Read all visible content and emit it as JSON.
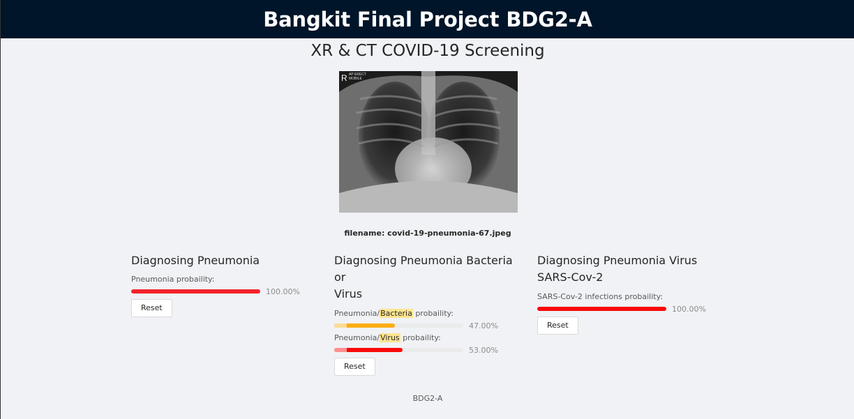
{
  "header": {
    "title": "Bangkit Final Project BDG2-A"
  },
  "page": {
    "subtitle": "XR & CT COVID-19 Screening",
    "xray_label_r": "R",
    "xray_label_text": "AP ERECT",
    "xray_label_text2": "MOBILE",
    "filename": "filename: covid-19-pneumonia-67.jpeg"
  },
  "cards": {
    "pneumonia": {
      "title": "Diagnosing Pneumonia",
      "label": "Pneumonia probaility:",
      "value": 100,
      "percent_text": "100.00%",
      "reset": "Reset"
    },
    "bacteria_virus": {
      "title_line1": "Diagnosing Pneumonia Bacteria or",
      "title_line2": "Virus",
      "bacteria_label_prefix": "Pneumonia/",
      "bacteria_label_mark": "Bacteria",
      "bacteria_label_suffix": " probaility:",
      "bacteria_value": 47,
      "bacteria_percent_text": "47.00%",
      "virus_label_prefix": "Pneumonia/",
      "virus_label_mark": "Virus",
      "virus_label_suffix": " probaility:",
      "virus_value": 53,
      "virus_percent_text": "53.00%",
      "reset": "Reset"
    },
    "sars": {
      "title_line1": "Diagnosing Pneumonia Virus",
      "title_line2": "SARS-Cov-2",
      "label": "SARS-Cov-2 infections probaility:",
      "value": 100,
      "percent_text": "100.00%",
      "reset": "Reset"
    }
  },
  "footer": {
    "text": "BDG2-A"
  },
  "colors": {
    "header_bg": "#001529",
    "bar_red": "#f5222d",
    "bar_orange": "#faad14",
    "highlight": "#ffe58f"
  }
}
